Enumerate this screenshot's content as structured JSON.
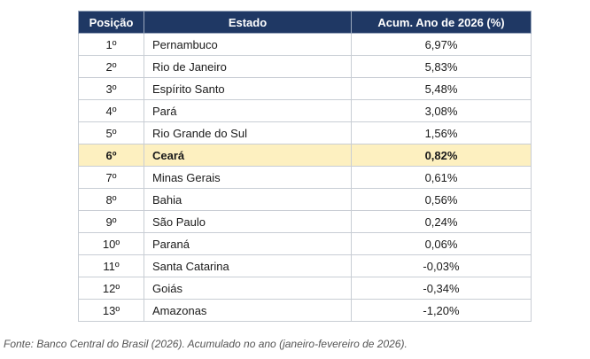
{
  "table": {
    "headers": [
      "Posição",
      "Estado",
      "Acum. Ano de 2026 (%)"
    ],
    "rows": [
      {
        "pos": "1º",
        "estado": "Pernambuco",
        "valor": "6,97%",
        "highlight": false
      },
      {
        "pos": "2º",
        "estado": "Rio de Janeiro",
        "valor": "5,83%",
        "highlight": false
      },
      {
        "pos": "3º",
        "estado": "Espírito Santo",
        "valor": "5,48%",
        "highlight": false
      },
      {
        "pos": "4º",
        "estado": "Pará",
        "valor": "3,08%",
        "highlight": false
      },
      {
        "pos": "5º",
        "estado": "Rio Grande do Sul",
        "valor": "1,56%",
        "highlight": false
      },
      {
        "pos": "6º",
        "estado": "Ceará",
        "valor": "0,82%",
        "highlight": true
      },
      {
        "pos": "7º",
        "estado": "Minas Gerais",
        "valor": "0,61%",
        "highlight": false
      },
      {
        "pos": "8º",
        "estado": "Bahia",
        "valor": "0,56%",
        "highlight": false
      },
      {
        "pos": "9º",
        "estado": "São Paulo",
        "valor": "0,24%",
        "highlight": false
      },
      {
        "pos": "10º",
        "estado": "Paraná",
        "valor": "0,06%",
        "highlight": false
      },
      {
        "pos": "11º",
        "estado": "Santa Catarina",
        "valor": "-0,03%",
        "highlight": false
      },
      {
        "pos": "12º",
        "estado": "Goiás",
        "valor": "-0,34%",
        "highlight": false
      },
      {
        "pos": "13º",
        "estado": "Amazonas",
        "valor": "-1,20%",
        "highlight": false
      }
    ]
  },
  "source": "Fonte: Banco Central do Brasil (2026). Acumulado no ano (janeiro-fevereiro de 2026).",
  "colors": {
    "header_bg": "#1f3864",
    "header_text": "#ffffff",
    "highlight_bg": "#fdf0c0"
  }
}
